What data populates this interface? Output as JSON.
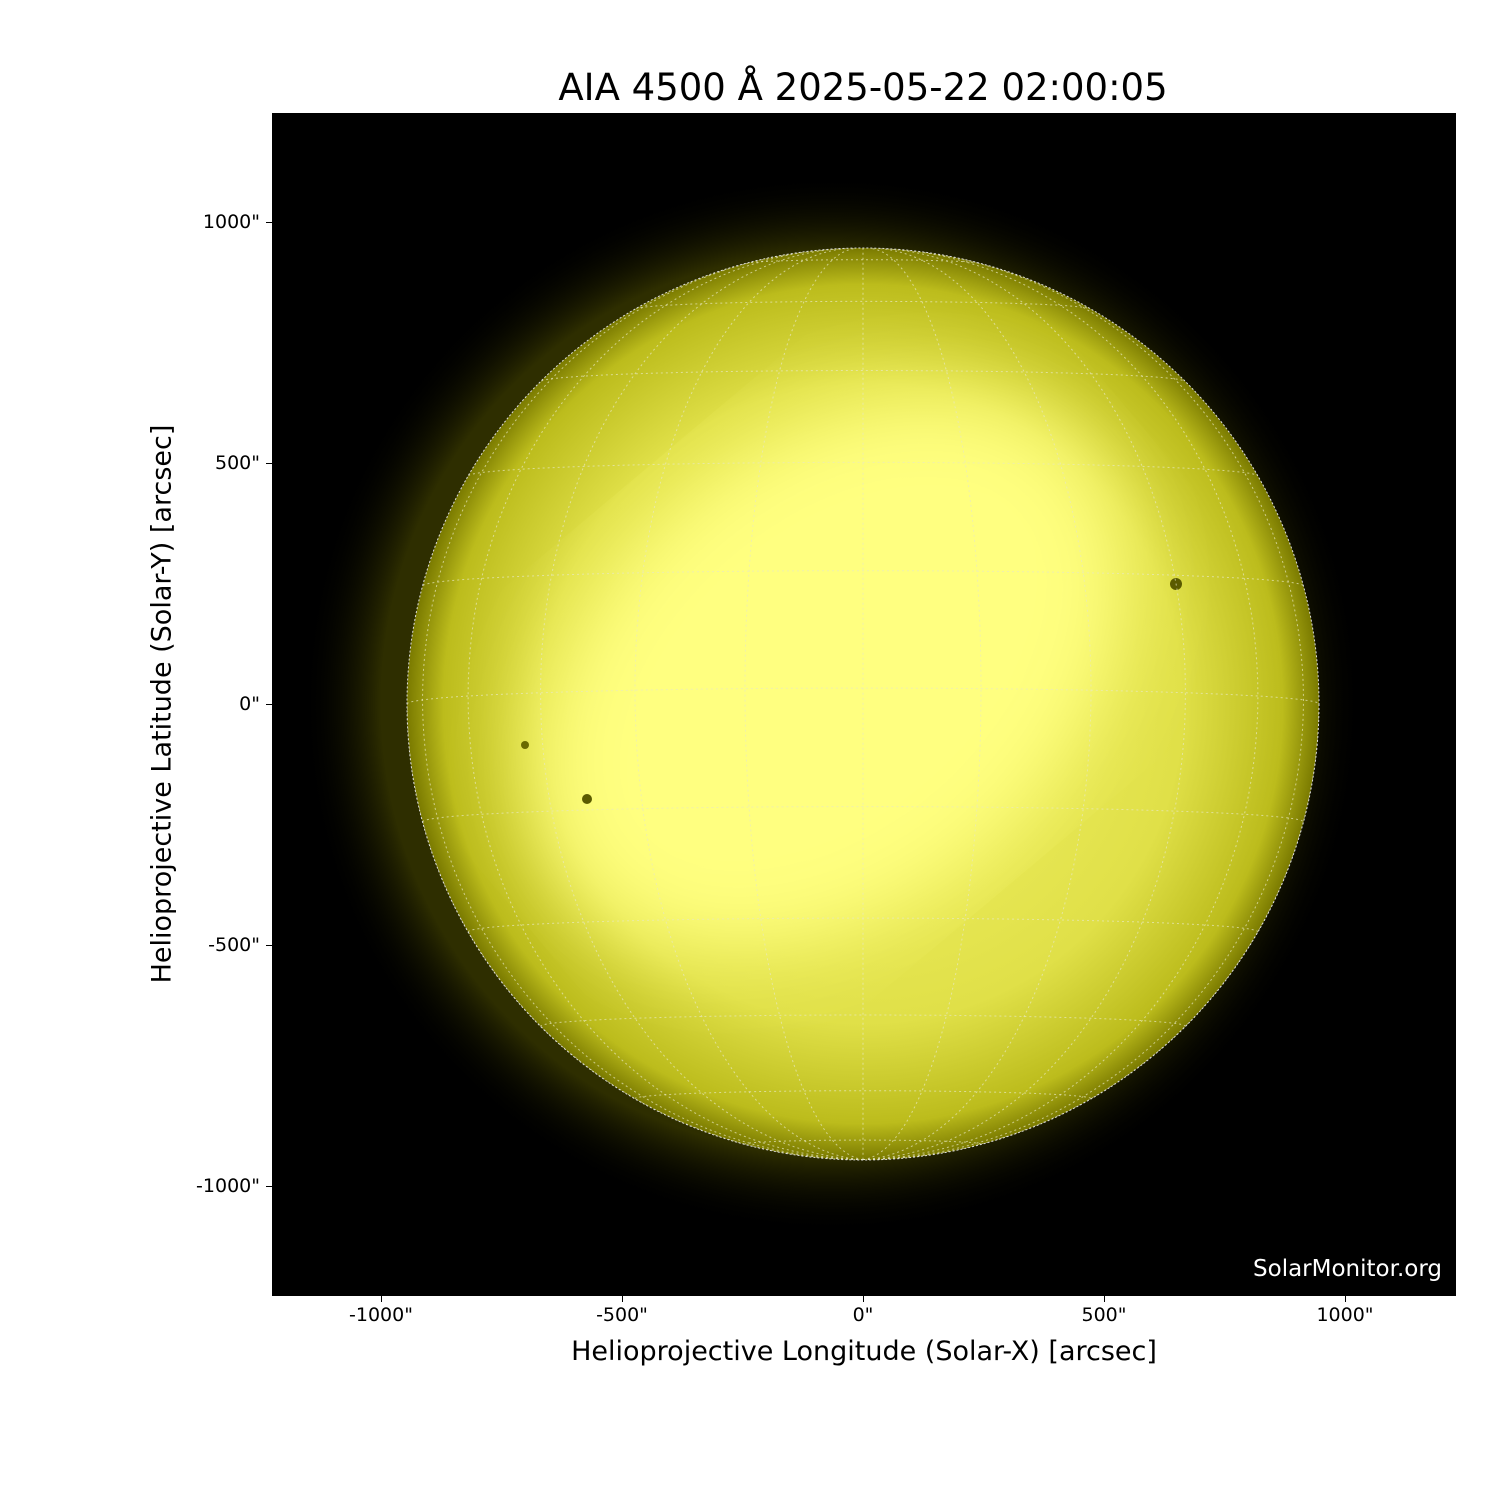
{
  "chart_data": {
    "type": "image",
    "title": "AIA 4500 Å 2025-05-22 02:00:05",
    "xlabel": "Helioprojective Longitude (Solar-X) [arcsec]",
    "ylabel": "Helioprojective Latitude (Solar-Y) [arcsec]",
    "xlim": [
      -1228,
      1228
    ],
    "ylim": [
      -1228,
      1228
    ],
    "xticks": [
      -1000,
      -500,
      0,
      500,
      1000
    ],
    "xtick_labels": [
      "-1000\"",
      "-500\"",
      "0\"",
      "500\"",
      "1000\""
    ],
    "yticks": [
      1000,
      500,
      0,
      -500,
      -1000
    ],
    "ytick_labels": [
      "1000\"",
      "500\"",
      "0\"",
      "-500\"",
      "-1000\""
    ],
    "colormap": "yellow (sdoaia4500)",
    "background": "#000000",
    "grid": "heliographic, dotted",
    "watermark": "SolarMonitor.org"
  }
}
